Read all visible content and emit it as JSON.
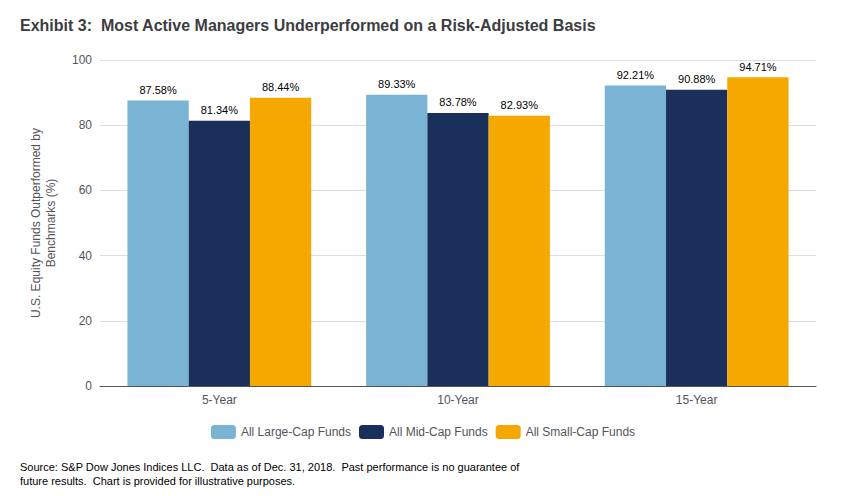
{
  "chart_data": {
    "type": "bar",
    "title": "Exhibit 3:  Most Active Managers Underperformed on a Risk-Adjusted Basis",
    "categories": [
      "5-Year",
      "10-Year",
      "15-Year"
    ],
    "series": [
      {
        "name": "All Large-Cap Funds",
        "color": "#7ab4d4",
        "values": [
          87.58,
          89.33,
          92.21
        ],
        "value_labels": [
          "87.58%",
          "89.33%",
          "92.21%"
        ]
      },
      {
        "name": "All Mid-Cap Funds",
        "color": "#1a2f5a",
        "values": [
          81.34,
          83.78,
          90.88
        ],
        "value_labels": [
          "81.34%",
          "83.78%",
          "90.88%"
        ]
      },
      {
        "name": "All Small-Cap Funds",
        "color": "#f5a800",
        "values": [
          88.44,
          82.93,
          94.71
        ],
        "value_labels": [
          "88.44%",
          "82.93%",
          "94.71%"
        ]
      }
    ],
    "ylabel": "U.S. Equity Funds Outperformed by\nBenchmarks (%)",
    "ylim": [
      0,
      100
    ],
    "yticks": [
      0,
      20,
      40,
      60,
      80,
      100
    ],
    "grid": true,
    "legend": "bottom",
    "data_labels": true,
    "annotations": [
      "Source: S&P Dow Jones Indices LLC.  Data as of Dec. 31, 2018.  Past performance is no guarantee of\nfuture results.  Chart is provided for illustrative purposes."
    ]
  }
}
